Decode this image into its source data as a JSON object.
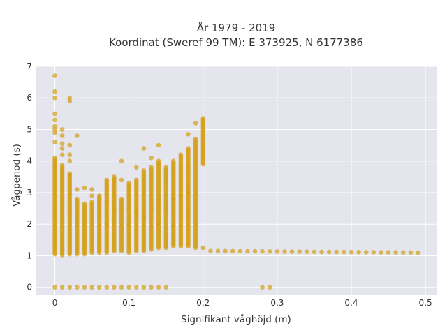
{
  "chart_data": {
    "type": "scatter",
    "title_line1": "År 1979 - 2019",
    "title_line2": "Koordinat (Sweref 99 TM): E 373925, N 6177386",
    "xlabel": "Signifikant våghöjd (m)",
    "ylabel": "Vågperiod (s)",
    "xlim": [
      -0.025,
      0.515
    ],
    "ylim": [
      -0.25,
      7.0
    ],
    "x_ticks": [
      0,
      0.1,
      0.2,
      0.3,
      0.4,
      0.5
    ],
    "x_tick_labels": [
      "0",
      "0,1",
      "0,2",
      "0,3",
      "0,4",
      "0,5"
    ],
    "y_ticks": [
      0,
      1,
      2,
      3,
      4,
      5,
      6,
      7
    ],
    "y_tick_labels": [
      "0",
      "1",
      "2",
      "3",
      "4",
      "5",
      "6",
      "7"
    ],
    "grid": true,
    "marker_color": "#D4A017",
    "background": "#E5E5EE",
    "series": [
      {
        "columns": [
          {
            "x": 0.0,
            "y_min": 1.05,
            "y_max": 4.1,
            "y_extra": [
              0,
              4.6,
              4.9,
              5.0,
              5.1,
              5.3,
              5.5,
              6.0,
              6.2,
              6.7
            ]
          },
          {
            "x": 0.01,
            "y_min": 1.02,
            "y_max": 3.9,
            "y_extra": [
              0,
              4.2,
              4.4,
              4.55,
              4.8,
              5.0
            ]
          },
          {
            "x": 0.02,
            "y_min": 1.05,
            "y_max": 3.6,
            "y_extra": [
              0,
              4.0,
              4.2,
              4.5,
              5.9,
              6.0
            ]
          },
          {
            "x": 0.03,
            "y_min": 1.05,
            "y_max": 2.8,
            "y_extra": [
              0,
              3.1,
              4.8
            ]
          },
          {
            "x": 0.04,
            "y_min": 1.05,
            "y_max": 2.65,
            "y_extra": [
              0,
              3.15
            ]
          },
          {
            "x": 0.05,
            "y_min": 1.1,
            "y_max": 2.7,
            "y_extra": [
              0,
              2.9,
              3.1
            ]
          },
          {
            "x": 0.06,
            "y_min": 1.1,
            "y_max": 2.9,
            "y_extra": [
              0
            ]
          },
          {
            "x": 0.07,
            "y_min": 1.1,
            "y_max": 3.4,
            "y_extra": [
              0,
              2.0,
              2.7
            ]
          },
          {
            "x": 0.08,
            "y_min": 1.15,
            "y_max": 3.5,
            "y_extra": [
              0,
              2.5
            ]
          },
          {
            "x": 0.09,
            "y_min": 1.15,
            "y_max": 2.8,
            "y_extra": [
              0,
              3.4,
              4.0
            ]
          },
          {
            "x": 0.1,
            "y_min": 1.1,
            "y_max": 3.3,
            "y_extra": [
              0,
              2.0,
              2.5
            ]
          },
          {
            "x": 0.11,
            "y_min": 1.15,
            "y_max": 3.4,
            "y_extra": [
              0,
              2.4,
              3.8
            ]
          },
          {
            "x": 0.12,
            "y_min": 1.15,
            "y_max": 3.7,
            "y_extra": [
              0,
              2.2,
              4.4
            ]
          },
          {
            "x": 0.13,
            "y_min": 1.2,
            "y_max": 3.8,
            "y_extra": [
              0,
              2.5,
              4.1
            ]
          },
          {
            "x": 0.14,
            "y_min": 1.25,
            "y_max": 4.0,
            "y_extra": [
              0,
              2.0,
              4.5
            ]
          },
          {
            "x": 0.15,
            "y_min": 1.25,
            "y_max": 3.8,
            "y_extra": [
              0,
              2.5
            ]
          },
          {
            "x": 0.16,
            "y_min": 1.3,
            "y_max": 4.0,
            "y_extra": [
              1.95,
              2.8
            ]
          },
          {
            "x": 0.17,
            "y_min": 1.3,
            "y_max": 4.2,
            "y_extra": [
              2.9
            ]
          },
          {
            "x": 0.18,
            "y_min": 1.3,
            "y_max": 4.4,
            "y_extra": [
              3.0,
              4.85
            ]
          },
          {
            "x": 0.19,
            "y_min": 1.25,
            "y_max": 4.7,
            "y_extra": [
              5.2
            ]
          },
          {
            "x": 0.2,
            "y_min": 3.9,
            "y_max": 5.35,
            "y_extra": [
              1.25
            ]
          }
        ],
        "tail_x_start": 0.21,
        "tail_x_end": 0.49,
        "tail_x_step": 0.01,
        "tail_y_start": 1.15,
        "tail_y_end": 1.1,
        "zero_points": [
          0.28,
          0.29
        ]
      }
    ]
  }
}
